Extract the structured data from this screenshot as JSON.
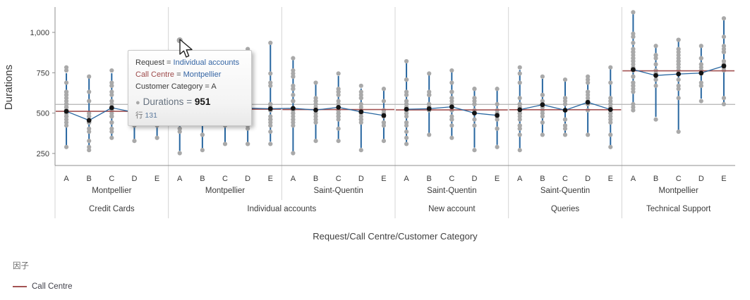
{
  "chart_data": {
    "type": "scatter",
    "subtype": "variability-dot-plot",
    "title": "",
    "ylabel": "Durations",
    "xlabel": "Request/Call Centre/Customer Category",
    "ylim": [
      160,
      1160
    ],
    "yticks": [
      250,
      500,
      750,
      1000
    ],
    "ytick_labels": [
      "250",
      "500",
      "750",
      "1,000"
    ],
    "grid": "panel-separators-only",
    "grand_mean": 554,
    "level_names": [
      "Request",
      "Call Centre",
      "Customer Category"
    ],
    "groups": [
      {
        "request": "Credit Cards",
        "call_centre": "Montpellier",
        "centre_mean": 511,
        "cells": [
          {
            "category": "A",
            "mean": 511,
            "min": 290,
            "max": 786,
            "whisker_max": 755,
            "n": 30
          },
          {
            "category": "B",
            "mean": 455,
            "min": 265,
            "max": 733,
            "n": 16
          },
          {
            "category": "C",
            "mean": 533,
            "min": 342,
            "max": 755,
            "n": 22
          },
          {
            "category": "D",
            "mean": 505,
            "min": 330,
            "max": 700,
            "n": 13
          },
          {
            "category": "E",
            "mean": 508,
            "min": 340,
            "max": 680,
            "n": 11
          }
        ]
      },
      {
        "request": "Individual accounts",
        "call_centre": "Montpellier",
        "centre_mean": 524,
        "cells": [
          {
            "category": "A",
            "mean": 528,
            "min": 258,
            "max": 951,
            "whisker_max": 780,
            "n": 24
          },
          {
            "category": "B",
            "mean": 520,
            "min": 270,
            "max": 760,
            "n": 15
          },
          {
            "category": "C",
            "mean": 522,
            "min": 305,
            "max": 780,
            "n": 18
          },
          {
            "category": "D",
            "mean": 531,
            "min": 300,
            "max": 888,
            "n": 18
          },
          {
            "category": "E",
            "mean": 527,
            "min": 315,
            "max": 936,
            "n": 20
          }
        ]
      },
      {
        "request": "Individual accounts",
        "call_centre": "Saint-Quentin",
        "centre_mean": 522,
        "cells": [
          {
            "category": "A",
            "mean": 530,
            "min": 255,
            "max": 838,
            "n": 26
          },
          {
            "category": "B",
            "mean": 519,
            "min": 330,
            "max": 690,
            "n": 15
          },
          {
            "category": "C",
            "mean": 536,
            "min": 322,
            "max": 738,
            "n": 20
          },
          {
            "category": "D",
            "mean": 508,
            "min": 277,
            "max": 660,
            "n": 15
          },
          {
            "category": "E",
            "mean": 485,
            "min": 322,
            "max": 651,
            "n": 13
          }
        ]
      },
      {
        "request": "New account",
        "call_centre": "Saint-Quentin",
        "centre_mean": 520,
        "cells": [
          {
            "category": "A",
            "mean": 524,
            "min": 305,
            "max": 820,
            "n": 26
          },
          {
            "category": "B",
            "mean": 527,
            "min": 357,
            "max": 747,
            "n": 15
          },
          {
            "category": "C",
            "mean": 539,
            "min": 340,
            "max": 760,
            "n": 18
          },
          {
            "category": "D",
            "mean": 500,
            "min": 278,
            "max": 659,
            "n": 15
          },
          {
            "category": "E",
            "mean": 486,
            "min": 295,
            "max": 653,
            "n": 13
          }
        ]
      },
      {
        "request": "Queries",
        "call_centre": "Saint-Quentin",
        "centre_mean": 521,
        "cells": [
          {
            "category": "A",
            "mean": 521,
            "min": 273,
            "max": 775,
            "n": 22
          },
          {
            "category": "B",
            "mean": 552,
            "min": 370,
            "max": 720,
            "n": 13
          },
          {
            "category": "C",
            "mean": 518,
            "min": 362,
            "max": 708,
            "n": 15
          },
          {
            "category": "D",
            "mean": 567,
            "min": 360,
            "max": 725,
            "n": 13
          },
          {
            "category": "E",
            "mean": 522,
            "min": 290,
            "max": 790,
            "n": 15
          }
        ]
      },
      {
        "request": "Technical Support",
        "call_centre": "Montpellier",
        "centre_mean": 762,
        "cells": [
          {
            "category": "A",
            "mean": 770,
            "min": 513,
            "max": 1121,
            "n": 30
          },
          {
            "category": "B",
            "mean": 733,
            "min": 469,
            "max": 913,
            "n": 15
          },
          {
            "category": "C",
            "mean": 742,
            "min": 386,
            "max": 963,
            "n": 18
          },
          {
            "category": "D",
            "mean": 748,
            "min": 582,
            "max": 913,
            "n": 13
          },
          {
            "category": "E",
            "mean": 792,
            "min": 546,
            "max": 1092,
            "n": 15
          }
        ]
      }
    ],
    "highlight": {
      "group_index": 1,
      "cell_index": 0,
      "value": 951
    }
  },
  "tooltip": {
    "eq": " = ",
    "rows": [
      {
        "label": "Request",
        "value": "Individual accounts"
      },
      {
        "label": "Call Centre",
        "value": "Montpellier"
      },
      {
        "label": "Customer Category",
        "value": "A"
      }
    ],
    "measure_label": "Durations",
    "measure_value": "951",
    "row_label": "行",
    "row_value": "131"
  },
  "legend": {
    "title": "因子",
    "items": [
      {
        "label": "Call Centre",
        "color": "#a35252"
      }
    ]
  },
  "colors": {
    "dot": "#a9a9a9",
    "mean_dot": "#141414",
    "range_line": "#2766a0",
    "centre_mean_line": "#a35252",
    "grand_mean_line": "#b3b3b3",
    "separator": "#d4d4d4",
    "axis": "#8f8f8f",
    "text": "#3a3a3a"
  }
}
